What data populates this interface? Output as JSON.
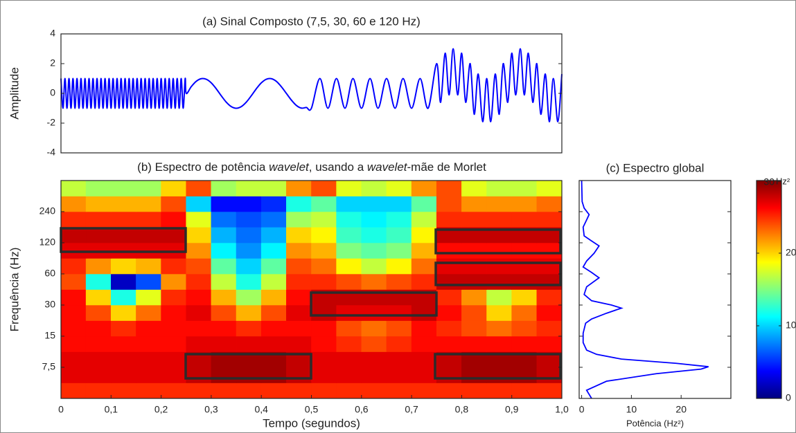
{
  "chart_data": [
    {
      "type": "line",
      "title": "(a) Sinal Composto (7,5, 30, 60 e 120 Hz)",
      "ylabel": "Amplitude",
      "color": "#0000ff",
      "xlim": [
        0,
        1.0
      ],
      "ylim": [
        -4,
        4
      ],
      "yticks": [
        -4,
        -2,
        0,
        2,
        4
      ],
      "x": [
        0,
        0.004,
        0.008,
        0.012,
        0.016,
        0.02,
        0.024,
        0.028,
        0.032,
        0.036,
        0.04,
        0.044,
        0.048,
        0.052,
        0.056,
        0.06,
        0.064,
        0.068,
        0.072,
        0.076,
        0.08,
        0.084,
        0.088,
        0.092,
        0.096,
        0.1,
        0.104,
        0.108,
        0.112,
        0.116,
        0.12,
        0.124,
        0.128,
        0.132,
        0.136,
        0.14,
        0.144,
        0.148,
        0.152,
        0.156,
        0.16,
        0.164,
        0.168,
        0.172,
        0.176,
        0.18,
        0.184,
        0.188,
        0.192,
        0.196,
        0.2,
        0.204,
        0.208,
        0.212,
        0.216,
        0.22,
        0.224,
        0.228,
        0.232,
        0.236,
        0.24,
        0.244,
        0.248,
        0.25,
        0.26,
        0.27,
        0.28,
        0.29,
        0.3,
        0.31,
        0.32,
        0.33,
        0.34,
        0.35,
        0.36,
        0.37,
        0.38,
        0.39,
        0.4,
        0.41,
        0.42,
        0.43,
        0.44,
        0.45,
        0.46,
        0.47,
        0.48,
        0.49,
        0.5,
        0.517,
        0.533,
        0.55,
        0.567,
        0.583,
        0.6,
        0.617,
        0.633,
        0.65,
        0.667,
        0.683,
        0.7,
        0.717,
        0.733,
        0.75,
        0.758,
        0.767,
        0.775,
        0.783,
        0.792,
        0.8,
        0.808,
        0.817,
        0.825,
        0.833,
        0.842,
        0.85,
        0.858,
        0.867,
        0.875,
        0.883,
        0.892,
        0.9,
        0.908,
        0.917,
        0.925,
        0.933,
        0.942,
        0.95,
        0.958,
        0.967,
        0.975,
        0.983,
        0.992,
        1.0
      ],
      "values": [
        1,
        -1,
        1,
        -1,
        1,
        -1,
        1,
        -1,
        1,
        -1,
        1,
        -1,
        1,
        -1,
        1,
        -1,
        1,
        -1,
        1,
        -1,
        1,
        -1,
        1,
        -1,
        1,
        -1,
        1,
        -1,
        1,
        -1,
        1,
        -1,
        1,
        -1,
        1,
        -1,
        1,
        -1,
        1,
        -1,
        1,
        -1,
        1,
        -1,
        1,
        -1,
        1,
        -1,
        1,
        -1,
        1,
        -1,
        1,
        -1,
        1,
        -1,
        1,
        -1,
        1,
        -1,
        1,
        -1,
        1,
        0,
        0.45,
        0.81,
        0.99,
        0.95,
        0.71,
        0.31,
        -0.16,
        -0.59,
        -0.89,
        -1,
        -0.89,
        -0.59,
        -0.16,
        0.31,
        0.71,
        0.95,
        0.99,
        0.81,
        0.45,
        0,
        -0.45,
        -0.81,
        -0.99,
        -0.95,
        -1,
        1,
        -1,
        1,
        -1,
        1,
        -1,
        1,
        -1,
        1,
        -1,
        1,
        -1,
        1,
        -1,
        2.0,
        -0.6,
        2.7,
        -0.1,
        3.0,
        -0.1,
        2.7,
        -0.6,
        2.0,
        -1.4,
        1.3,
        -1.9,
        1.0,
        -1.9,
        1.3,
        -1.4,
        2.0,
        -0.6,
        2.7,
        -0.1,
        3.0,
        -0.1,
        2.7,
        -0.6,
        2.0,
        -1.4,
        1.3,
        -1.9,
        1.0,
        -1.9,
        1.3
      ]
    },
    {
      "type": "heatmap",
      "title": [
        "(b) Espectro de potência ",
        "wavelet",
        ", usando a ",
        "wavelet",
        "-mãe de Morlet"
      ],
      "xlabel": "Tempo (segundos)",
      "ylabel": "Frequência (Hz)",
      "xlim": [
        0,
        1.0
      ],
      "xticks": [
        0,
        {
          "value": 0.1,
          "label": "0,1"
        },
        {
          "value": 0.2,
          "label": "0,2"
        },
        {
          "value": 0.3,
          "label": "0,3"
        },
        {
          "value": 0.4,
          "label": "0,4"
        },
        {
          "value": 0.5,
          "label": "0,5"
        },
        {
          "value": 0.6,
          "label": "0,6"
        },
        {
          "value": 0.7,
          "label": "0,7"
        },
        {
          "value": 0.8,
          "label": "0,8"
        },
        {
          "value": 0.9,
          "label": "0,9"
        },
        {
          "value": 1.0,
          "label": "1,0"
        }
      ],
      "ylim": [
        3.75,
        480
      ],
      "log_y": true,
      "yticks": [
        {
          "value": 7.5,
          "label": "7,5"
        },
        15,
        30,
        60,
        120,
        240
      ],
      "xedges": [
        0,
        0.05,
        0.1,
        0.15,
        0.2,
        0.25,
        0.3,
        0.35,
        0.4,
        0.45,
        0.5,
        0.55,
        0.6,
        0.65,
        0.7,
        0.75,
        0.8,
        0.85,
        0.9,
        0.95,
        1.0
      ],
      "yedges": [
        3.75,
        5.3,
        7.5,
        10.6,
        15,
        21.2,
        30,
        42.4,
        60,
        84.9,
        120,
        170,
        240,
        339,
        480
      ],
      "z": [
        [
          25,
          25,
          25,
          25,
          25,
          25,
          25,
          25,
          25,
          25,
          25,
          25,
          25,
          25,
          25,
          25,
          25,
          25,
          25,
          25
        ],
        [
          27,
          27,
          27,
          27,
          27,
          28,
          29,
          29,
          29,
          28,
          27,
          27,
          27,
          27,
          27,
          28,
          29,
          29,
          29,
          28
        ],
        [
          27,
          27,
          27,
          27,
          27,
          28,
          29,
          29,
          29,
          28,
          27,
          27,
          27,
          27,
          27,
          28,
          29,
          29,
          29,
          28
        ],
        [
          26,
          26,
          26,
          26,
          26,
          27,
          27,
          27,
          27,
          27,
          26,
          25,
          24,
          25,
          26,
          26,
          26,
          26,
          26,
          26
        ],
        [
          26,
          26,
          25,
          26,
          26,
          26,
          26,
          25,
          26,
          26,
          26,
          24,
          23,
          24,
          26,
          25,
          24,
          23,
          24,
          25
        ],
        [
          26,
          24,
          20,
          23,
          26,
          27,
          24,
          21,
          24,
          27,
          28,
          27,
          27,
          27,
          28,
          26,
          24,
          20,
          23,
          26
        ],
        [
          26,
          20,
          12,
          18,
          25,
          26,
          21,
          16,
          21,
          26,
          28,
          28,
          28,
          28,
          28,
          25,
          22,
          17,
          20,
          25
        ],
        [
          24,
          12,
          2,
          6,
          22,
          25,
          17,
          12,
          17,
          25,
          25,
          24,
          23,
          24,
          25,
          28,
          28,
          28,
          28,
          28
        ],
        [
          25,
          22,
          20,
          21,
          25,
          24,
          14,
          10,
          14,
          24,
          23,
          19,
          17,
          19,
          23,
          27,
          27,
          27,
          27,
          27
        ],
        [
          27,
          27,
          27,
          27,
          27,
          22,
          11,
          8,
          11,
          22,
          21,
          15,
          14,
          15,
          21,
          26,
          26,
          26,
          26,
          26
        ],
        [
          28,
          28,
          28,
          28,
          28,
          20,
          9,
          7,
          9,
          20,
          19,
          13,
          12,
          13,
          19,
          28,
          28,
          28,
          28,
          28
        ],
        [
          25,
          25,
          25,
          25,
          26,
          18,
          7,
          6,
          7,
          16,
          17,
          12,
          11,
          12,
          17,
          25,
          25,
          25,
          25,
          25
        ],
        [
          22,
          21,
          21,
          21,
          24,
          10,
          4,
          4,
          5,
          12,
          14,
          10,
          10,
          10,
          14,
          24,
          22,
          22,
          22,
          23
        ],
        [
          17,
          16,
          16,
          16,
          20,
          24,
          16,
          17,
          17,
          22,
          24,
          18,
          17,
          18,
          22,
          24,
          18,
          17,
          17,
          18
        ]
      ],
      "colorbar": {
        "clim": [
          0,
          30
        ],
        "ticks": [
          0,
          10,
          20,
          30
        ],
        "label": "Hz²"
      }
    },
    {
      "type": "line",
      "orientation": "horizontal",
      "title": "(c) Espectro global",
      "xlabel": "Potência (Hz²)",
      "color": "#0000ff",
      "xlim": [
        -0.5,
        30
      ],
      "xticks": [
        0,
        10,
        20
      ],
      "ylim": [
        3.75,
        480
      ],
      "log_y": true,
      "yticks": [
        7.5,
        15,
        30,
        60,
        120,
        240
      ],
      "y": [
        3.75,
        4.5,
        5.5,
        6.5,
        7.2,
        7.6,
        8.2,
        9,
        10,
        11,
        13,
        16,
        20,
        22,
        25,
        28,
        30,
        33,
        38,
        45,
        55,
        62,
        70,
        80,
        95,
        112,
        125,
        140,
        170,
        200,
        225,
        260,
        300,
        480
      ],
      "values": [
        2,
        1,
        5,
        15,
        24,
        25.5,
        19,
        8,
        3,
        1,
        0.3,
        0.3,
        0.8,
        2,
        5,
        8,
        6,
        2,
        0.5,
        1,
        3.5,
        2,
        0.3,
        1,
        2.5,
        3.5,
        2,
        0.5,
        0.3,
        1,
        1.5,
        0.5,
        0.1,
        0
      ]
    }
  ]
}
